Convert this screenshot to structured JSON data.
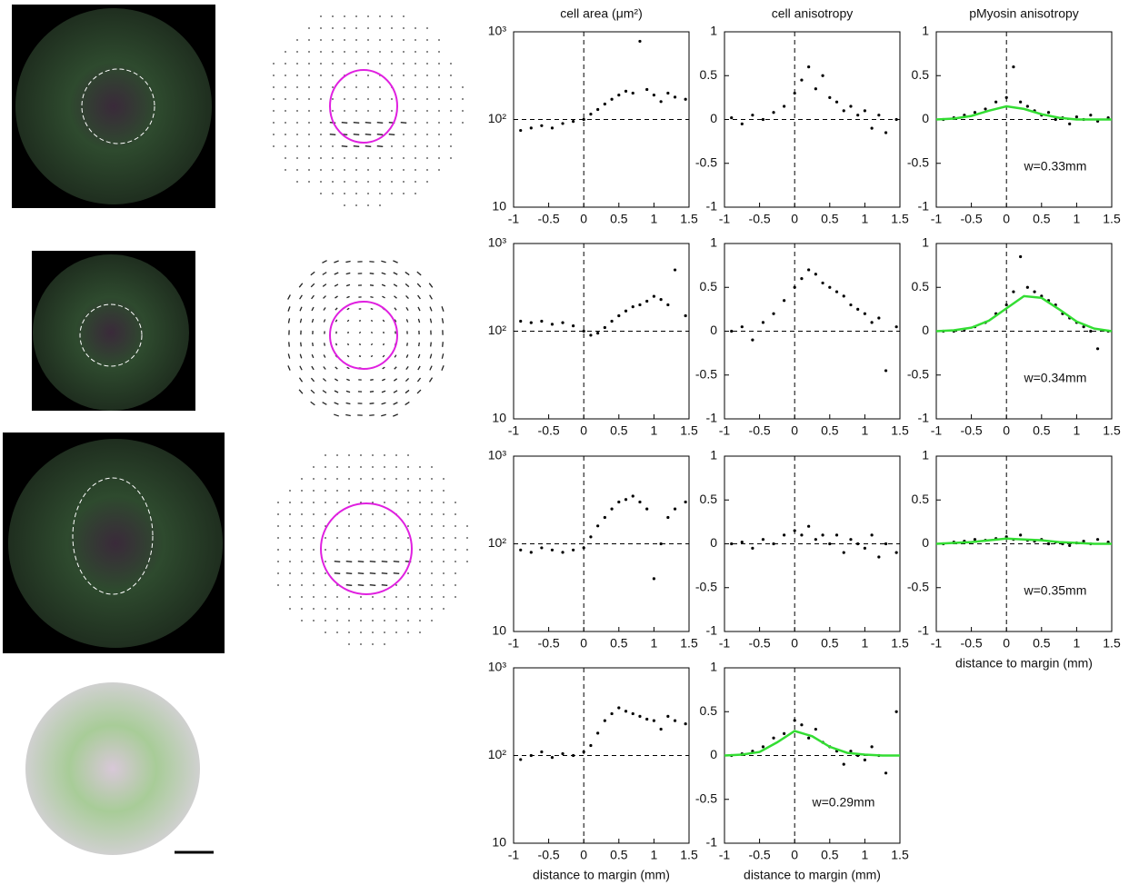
{
  "chart_data": [
    {
      "type": "scatter",
      "title": "cell area (μm²)",
      "log_scale": true,
      "color": "#000000",
      "xlim": [
        -1,
        1.5
      ],
      "xticks": [
        -1,
        -0.5,
        0,
        0.5,
        1,
        1.5
      ],
      "ylim": [
        10,
        1000
      ],
      "yticks": [
        10,
        {
          "value": 100,
          "label": "10²"
        },
        {
          "value": 1000,
          "label": "10³"
        }
      ],
      "ref_lines": {
        "x": 0,
        "y": 100
      },
      "x": [
        -0.9,
        -0.75,
        -0.6,
        -0.45,
        -0.3,
        -0.15,
        0,
        0.1,
        0.2,
        0.3,
        0.4,
        0.5,
        0.6,
        0.7,
        0.8,
        0.9,
        1.0,
        1.1,
        1.2,
        1.3,
        1.45
      ],
      "values": [
        75,
        80,
        85,
        80,
        90,
        95,
        100,
        115,
        130,
        150,
        170,
        190,
        210,
        200,
        780,
        220,
        190,
        160,
        200,
        180,
        170
      ]
    },
    {
      "type": "scatter",
      "title": "cell anisotropy",
      "log_scale": false,
      "color": "#000000",
      "xlim": [
        -1,
        1.5
      ],
      "xticks": [
        -1,
        -0.5,
        0,
        0.5,
        1,
        1.5
      ],
      "ylim": [
        -1,
        1
      ],
      "yticks": [
        -1,
        -0.5,
        0,
        0.5,
        1
      ],
      "ref_lines": {
        "x": 0,
        "y": 0
      },
      "x": [
        -0.9,
        -0.75,
        -0.6,
        -0.45,
        -0.3,
        -0.15,
        0,
        0.1,
        0.2,
        0.3,
        0.4,
        0.5,
        0.6,
        0.7,
        0.8,
        0.9,
        1.0,
        1.1,
        1.2,
        1.3,
        1.45
      ],
      "values": [
        0.02,
        -0.05,
        0.05,
        0,
        0.08,
        0.15,
        0.3,
        0.45,
        0.6,
        0.35,
        0.5,
        0.25,
        0.2,
        0.1,
        0.15,
        0.05,
        0.1,
        -0.1,
        0.05,
        -0.15,
        0
      ]
    },
    {
      "type": "scatter",
      "title": "pMyosin anisotropy",
      "log_scale": false,
      "color": "#000000",
      "xlim": [
        -1,
        1.5
      ],
      "xticks": [
        -1,
        -0.5,
        0,
        0.5,
        1,
        1.5
      ],
      "ylim": [
        -1,
        1
      ],
      "yticks": [
        -1,
        -0.5,
        0,
        0.5,
        1
      ],
      "ref_lines": {
        "x": 0,
        "y": 0
      },
      "x": [
        -0.9,
        -0.75,
        -0.6,
        -0.45,
        -0.3,
        -0.15,
        0,
        0.1,
        0.2,
        0.3,
        0.4,
        0.5,
        0.6,
        0.7,
        0.8,
        0.9,
        1.0,
        1.1,
        1.2,
        1.3,
        1.45
      ],
      "values": [
        0,
        0.02,
        0.05,
        0.08,
        0.12,
        0.2,
        0.25,
        0.6,
        0.2,
        0.15,
        0.1,
        0.05,
        0.08,
        0,
        0.02,
        -0.05,
        0.03,
        0,
        0.05,
        -0.02,
        0.02
      ],
      "fit": {
        "color": "#33dd33",
        "x": [
          -1,
          -0.75,
          -0.5,
          -0.25,
          0,
          0.25,
          0.5,
          0.75,
          1,
          1.25,
          1.5
        ],
        "values": [
          0,
          0.01,
          0.04,
          0.1,
          0.15,
          0.12,
          0.06,
          0.02,
          0,
          0,
          0
        ]
      },
      "annotation": "w=0.33mm"
    },
    {
      "type": "scatter",
      "log_scale": true,
      "color": "#000000",
      "xlim": [
        -1,
        1.5
      ],
      "xticks": [
        -1,
        -0.5,
        0,
        0.5,
        1,
        1.5
      ],
      "ylim": [
        10,
        1000
      ],
      "yticks": [
        10,
        {
          "value": 100,
          "label": "10²"
        },
        {
          "value": 1000,
          "label": "10³"
        }
      ],
      "ref_lines": {
        "x": 0,
        "y": 100
      },
      "x": [
        -0.9,
        -0.75,
        -0.6,
        -0.45,
        -0.3,
        -0.15,
        0,
        0.1,
        0.2,
        0.3,
        0.4,
        0.5,
        0.6,
        0.7,
        0.8,
        0.9,
        1.0,
        1.1,
        1.2,
        1.3,
        1.45
      ],
      "values": [
        130,
        125,
        130,
        120,
        125,
        115,
        100,
        90,
        95,
        110,
        130,
        150,
        170,
        190,
        200,
        220,
        250,
        230,
        200,
        500,
        150
      ]
    },
    {
      "type": "scatter",
      "log_scale": false,
      "color": "#000000",
      "xlim": [
        -1,
        1.5
      ],
      "xticks": [
        -1,
        -0.5,
        0,
        0.5,
        1,
        1.5
      ],
      "ylim": [
        -1,
        1
      ],
      "yticks": [
        -1,
        -0.5,
        0,
        0.5,
        1
      ],
      "ref_lines": {
        "x": 0,
        "y": 0
      },
      "x": [
        -0.9,
        -0.75,
        -0.6,
        -0.45,
        -0.3,
        -0.15,
        0,
        0.1,
        0.2,
        0.3,
        0.4,
        0.5,
        0.6,
        0.7,
        0.8,
        0.9,
        1.0,
        1.1,
        1.2,
        1.3,
        1.45
      ],
      "values": [
        0,
        0.05,
        -0.1,
        0.1,
        0.2,
        0.35,
        0.5,
        0.6,
        0.7,
        0.65,
        0.55,
        0.5,
        0.45,
        0.4,
        0.3,
        0.25,
        0.2,
        0.1,
        0.15,
        -0.45,
        0.05
      ]
    },
    {
      "type": "scatter",
      "log_scale": false,
      "color": "#000000",
      "xlim": [
        -1,
        1.5
      ],
      "xticks": [
        -1,
        -0.5,
        0,
        0.5,
        1,
        1.5
      ],
      "ylim": [
        -1,
        1
      ],
      "yticks": [
        -1,
        -0.5,
        0,
        0.5,
        1
      ],
      "ref_lines": {
        "x": 0,
        "y": 0
      },
      "x": [
        -0.9,
        -0.75,
        -0.6,
        -0.45,
        -0.3,
        -0.15,
        0,
        0.1,
        0.2,
        0.3,
        0.4,
        0.5,
        0.6,
        0.7,
        0.8,
        0.9,
        1.0,
        1.1,
        1.2,
        1.3,
        1.45
      ],
      "values": [
        0,
        0,
        0.02,
        0.05,
        0.1,
        0.2,
        0.3,
        0.45,
        0.85,
        0.5,
        0.45,
        0.4,
        0.35,
        0.3,
        0.2,
        0.15,
        0.1,
        0.05,
        0,
        -0.2,
        0
      ],
      "fit": {
        "color": "#33dd33",
        "x": [
          -1,
          -0.75,
          -0.5,
          -0.25,
          0,
          0.25,
          0.5,
          0.75,
          1,
          1.25,
          1.5
        ],
        "values": [
          0,
          0.01,
          0.04,
          0.12,
          0.26,
          0.4,
          0.38,
          0.25,
          0.11,
          0.03,
          0
        ]
      },
      "annotation": "w=0.34mm"
    },
    {
      "type": "scatter",
      "log_scale": true,
      "color": "#000000",
      "xlim": [
        -1,
        1.5
      ],
      "xticks": [
        -1,
        -0.5,
        0,
        0.5,
        1,
        1.5
      ],
      "ylim": [
        10,
        1000
      ],
      "yticks": [
        10,
        {
          "value": 100,
          "label": "10²"
        },
        {
          "value": 1000,
          "label": "10³"
        }
      ],
      "ref_lines": {
        "x": 0,
        "y": 100
      },
      "x": [
        -0.9,
        -0.75,
        -0.6,
        -0.45,
        -0.3,
        -0.15,
        0,
        0.1,
        0.2,
        0.3,
        0.4,
        0.5,
        0.6,
        0.7,
        0.8,
        0.9,
        1.0,
        1.1,
        1.2,
        1.3,
        1.45
      ],
      "values": [
        85,
        80,
        90,
        85,
        80,
        85,
        90,
        120,
        160,
        200,
        250,
        300,
        320,
        350,
        300,
        250,
        40,
        100,
        200,
        250,
        300
      ]
    },
    {
      "type": "scatter",
      "log_scale": false,
      "color": "#000000",
      "xlim": [
        -1,
        1.5
      ],
      "xticks": [
        -1,
        -0.5,
        0,
        0.5,
        1,
        1.5
      ],
      "ylim": [
        -1,
        1
      ],
      "yticks": [
        -1,
        -0.5,
        0,
        0.5,
        1
      ],
      "ref_lines": {
        "x": 0,
        "y": 0
      },
      "x": [
        -0.9,
        -0.75,
        -0.6,
        -0.45,
        -0.3,
        -0.15,
        0,
        0.1,
        0.2,
        0.3,
        0.4,
        0.5,
        0.6,
        0.7,
        0.8,
        0.9,
        1.0,
        1.1,
        1.2,
        1.3,
        1.45
      ],
      "values": [
        0,
        0.02,
        -0.05,
        0.05,
        0,
        0.1,
        0.15,
        0.1,
        0.2,
        0.05,
        0.1,
        0,
        0.1,
        -0.1,
        0.05,
        0,
        -0.05,
        0.1,
        -0.15,
        0,
        -0.1
      ]
    },
    {
      "type": "scatter",
      "log_scale": false,
      "color": "#000000",
      "xlabel": "distance to margin (mm)",
      "xlim": [
        -1,
        1.5
      ],
      "xticks": [
        -1,
        -0.5,
        0,
        0.5,
        1,
        1.5
      ],
      "ylim": [
        -1,
        1
      ],
      "yticks": [
        -1,
        -0.5,
        0,
        0.5,
        1
      ],
      "ref_lines": {
        "x": 0,
        "y": 0
      },
      "x": [
        -0.9,
        -0.75,
        -0.6,
        -0.45,
        -0.3,
        -0.15,
        0,
        0.1,
        0.2,
        0.3,
        0.4,
        0.5,
        0.6,
        0.7,
        0.8,
        0.9,
        1.0,
        1.1,
        1.2,
        1.3,
        1.45
      ],
      "values": [
        0,
        0.02,
        0.03,
        0.05,
        0.04,
        0.06,
        0.08,
        0.05,
        0.1,
        0.04,
        0.03,
        0.05,
        0,
        0.02,
        0,
        -0.02,
        0.01,
        0.03,
        0,
        0.05,
        0.02
      ],
      "fit": {
        "color": "#33dd33",
        "x": [
          -1,
          -0.75,
          -0.5,
          -0.25,
          0,
          0.25,
          0.5,
          0.75,
          1,
          1.25,
          1.5
        ],
        "values": [
          0,
          0.01,
          0.02,
          0.04,
          0.06,
          0.05,
          0.04,
          0.02,
          0.01,
          0,
          0
        ]
      },
      "annotation": "w=0.35mm"
    },
    {
      "type": "scatter",
      "log_scale": true,
      "color": "#000000",
      "xlabel": "distance to margin (mm)",
      "xlim": [
        -1,
        1.5
      ],
      "xticks": [
        -1,
        -0.5,
        0,
        0.5,
        1,
        1.5
      ],
      "ylim": [
        10,
        1000
      ],
      "yticks": [
        10,
        {
          "value": 100,
          "label": "10²"
        },
        {
          "value": 1000,
          "label": "10³"
        }
      ],
      "ref_lines": {
        "x": 0,
        "y": 100
      },
      "x": [
        -0.9,
        -0.75,
        -0.6,
        -0.45,
        -0.3,
        -0.15,
        0,
        0.1,
        0.2,
        0.3,
        0.4,
        0.5,
        0.6,
        0.7,
        0.8,
        0.9,
        1.0,
        1.1,
        1.2,
        1.3,
        1.45
      ],
      "values": [
        90,
        100,
        110,
        95,
        105,
        100,
        110,
        130,
        180,
        250,
        300,
        350,
        320,
        300,
        280,
        260,
        250,
        200,
        280,
        250,
        230
      ]
    },
    {
      "type": "scatter",
      "log_scale": false,
      "color": "#000000",
      "xlabel": "distance to margin (mm)",
      "xlim": [
        -1,
        1.5
      ],
      "xticks": [
        -1,
        -0.5,
        0,
        0.5,
        1,
        1.5
      ],
      "ylim": [
        -1,
        1
      ],
      "yticks": [
        -1,
        -0.5,
        0,
        0.5,
        1
      ],
      "ref_lines": {
        "x": 0,
        "y": 0
      },
      "x": [
        -0.9,
        -0.75,
        -0.6,
        -0.45,
        -0.3,
        -0.15,
        0,
        0.1,
        0.2,
        0.3,
        0.4,
        0.5,
        0.6,
        0.7,
        0.8,
        0.9,
        1.0,
        1.1,
        1.2,
        1.3,
        1.45
      ],
      "values": [
        0,
        0.02,
        0.05,
        0.1,
        0.2,
        0.25,
        0.4,
        0.35,
        0.2,
        0.3,
        0.15,
        0.1,
        0.05,
        -0.1,
        0.05,
        0,
        -0.05,
        0.1,
        0,
        -0.2,
        0.5
      ],
      "fit": {
        "color": "#33dd33",
        "x": [
          -1,
          -0.75,
          -0.5,
          -0.25,
          0,
          0.25,
          0.5,
          0.75,
          1,
          1.25,
          1.5
        ],
        "values": [
          0,
          0.01,
          0.04,
          0.15,
          0.28,
          0.22,
          0.1,
          0.03,
          0.01,
          0,
          0
        ]
      },
      "annotation": "w=0.29mm"
    }
  ]
}
